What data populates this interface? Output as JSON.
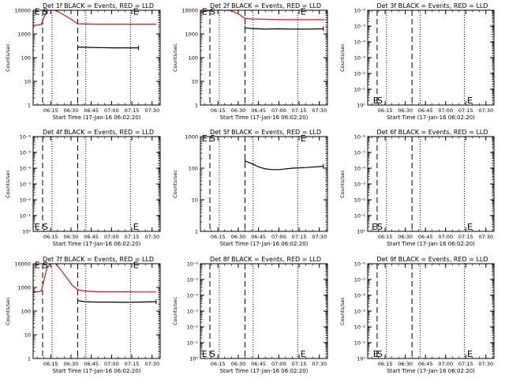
{
  "colors": {
    "events": "#000000",
    "lld": "#dd1111",
    "axis": "#000000",
    "background": "#ffffff"
  },
  "common": {
    "xlabel": "Start Time (17-Jan-16 06:02:20)",
    "ylabel": "Counts/sec",
    "xticks": [
      "06:15",
      "06:30",
      "06:45",
      "07:00",
      "07:15",
      "07:30"
    ]
  },
  "panels": [
    {
      "title": "Det 1f BLACK = Events, RED = LLD",
      "yticks": [
        "1",
        "10",
        "100",
        "1000",
        "10000"
      ]
    },
    {
      "title": "Det 2f BLACK = Events, RED = LLD",
      "yticks": [
        "1",
        "10",
        "100",
        "1000",
        "10000"
      ]
    },
    {
      "title": "Det 3f BLACK = Events, RED = LLD",
      "yticks": [
        "10⁰",
        "10⁻¹",
        "10⁻²",
        "10⁻³",
        "10⁻⁴",
        "10⁻⁵",
        "10⁻⁶"
      ]
    },
    {
      "title": "Det 4f BLACK = Events, RED = LLD",
      "yticks": [
        "10⁰",
        "10⁻¹",
        "10⁻²",
        "10⁻³",
        "10⁻⁴",
        "10⁻⁵",
        "10⁻⁶"
      ]
    },
    {
      "title": "Det 5f BLACK = Events, RED = LLD",
      "yticks": [
        "1",
        "10",
        "100",
        "1000"
      ]
    },
    {
      "title": "Det 6f BLACK = Events, RED = LLD",
      "yticks": [
        "10⁰",
        "10⁻¹",
        "10⁻²",
        "10⁻³",
        "10⁻⁴",
        "10⁻⁵",
        "10⁻⁶"
      ]
    },
    {
      "title": "Det 7f BLACK = Events, RED = LLD",
      "yticks": [
        "1",
        "10",
        "100",
        "1000",
        "10000"
      ]
    },
    {
      "title": "Det 8f BLACK = Events, RED = LLD",
      "yticks": [
        "10⁰",
        "10⁻¹",
        "10⁻²",
        "10⁻³",
        "10⁻⁴",
        "10⁻⁵",
        "10⁻⁶"
      ]
    },
    {
      "title": "Det 9f BLACK = Events, RED = LLD",
      "yticks": [
        "10⁰",
        "10⁻¹",
        "10⁻²",
        "10⁻³",
        "10⁻⁴",
        "10⁻⁵",
        "10⁻⁶"
      ]
    }
  ],
  "chart_data": [
    {
      "type": "line",
      "title": "Det 1f BLACK = Events, RED = LLD",
      "xlabel": "Start Time (17-Jan-16 06:02:20)",
      "ylabel": "Counts/sec",
      "yscale": "log",
      "xlim": [
        "06:02",
        "07:36"
      ],
      "ylim": [
        1,
        10000
      ],
      "dashed_x": [
        "06:09",
        "06:35"
      ],
      "dotted_x": [
        "06:16",
        "06:41",
        "07:14",
        "07:35"
      ],
      "markers": [
        {
          "label": "E",
          "x": "06:03",
          "y": 9000
        },
        {
          "label": "S",
          "x": "06:09",
          "y": 9000
        },
        {
          "label": "E",
          "x": "07:16",
          "y": 9000
        }
      ],
      "series": [
        {
          "color": "red",
          "x": [
            "06:02",
            "06:06",
            "06:08",
            "06:10",
            "06:12",
            "06:14",
            "06:16",
            "06:20",
            "06:28",
            "06:35",
            "06:50",
            "07:10",
            "07:33"
          ],
          "y": [
            2300,
            2400,
            2500,
            5000,
            9000,
            11000,
            11000,
            9000,
            5000,
            2700,
            2600,
            2600,
            2600
          ]
        },
        {
          "color": "black",
          "x": [
            "06:35",
            "06:45",
            "07:00",
            "07:15",
            "07:20"
          ],
          "y": [
            280,
            270,
            260,
            260,
            260
          ]
        }
      ]
    },
    {
      "type": "line",
      "title": "Det 2f BLACK = Events, RED = LLD",
      "xlabel": "Start Time (17-Jan-16 06:02:20)",
      "ylabel": "Counts/sec",
      "yscale": "log",
      "xlim": [
        "06:02",
        "07:36"
      ],
      "ylim": [
        1,
        10000
      ],
      "dashed_x": [
        "06:09",
        "06:35"
      ],
      "dotted_x": [
        "06:16",
        "06:41",
        "07:14",
        "07:35"
      ],
      "markers": [
        {
          "label": "E",
          "x": "06:03",
          "y": 9000
        },
        {
          "label": "S",
          "x": "06:09",
          "y": 9000
        },
        {
          "label": "E",
          "x": "07:16",
          "y": 9000
        }
      ],
      "series": [
        {
          "color": "red",
          "x": [
            "06:02",
            "06:05",
            "06:08",
            "06:11",
            "06:14",
            "06:18",
            "06:25",
            "06:31",
            "06:35",
            "06:40",
            "06:50",
            "07:00",
            "07:10",
            "07:20",
            "07:34"
          ],
          "y": [
            8500,
            9000,
            9500,
            11000,
            11000,
            10500,
            9500,
            6500,
            4500,
            4300,
            4200,
            4000,
            4000,
            4000,
            4000
          ]
        },
        {
          "color": "black",
          "x": [
            "06:35",
            "06:40",
            "06:50",
            "07:00",
            "07:10",
            "07:20",
            "07:33"
          ],
          "y": [
            1800,
            1700,
            1600,
            1650,
            1600,
            1600,
            1650
          ]
        }
      ]
    },
    {
      "type": "line",
      "title": "Det 3f BLACK = Events, RED = LLD",
      "xlabel": "Start Time (17-Jan-16 06:02:20)",
      "ylabel": "Counts/sec",
      "yscale": "log",
      "xlim": [
        "06:02",
        "07:36"
      ],
      "ylim": [
        1,
        1000000
      ],
      "dashed_x": [
        "06:09",
        "06:35"
      ],
      "dotted_x": [
        "06:16",
        "06:41",
        "07:14",
        "07:35"
      ],
      "markers": [
        {
          "label": "E",
          "x": "06:06",
          "y": 2
        },
        {
          "label": "S",
          "x": "06:09",
          "y": 2
        },
        {
          "label": "E",
          "x": "07:16",
          "y": 2
        }
      ],
      "series": []
    },
    {
      "type": "line",
      "title": "Det 4f BLACK = Events, RED = LLD",
      "xlabel": "Start Time (17-Jan-16 06:02:20)",
      "ylabel": "Counts/sec",
      "yscale": "log",
      "xlim": [
        "06:02",
        "07:36"
      ],
      "ylim": [
        1,
        1000000
      ],
      "dashed_x": [
        "06:09",
        "06:35"
      ],
      "dotted_x": [
        "06:16",
        "06:41",
        "07:14",
        "07:35"
      ],
      "markers": [
        {
          "label": "E",
          "x": "06:03",
          "y": 2
        },
        {
          "label": "S",
          "x": "06:09",
          "y": 2
        },
        {
          "label": "E",
          "x": "07:16",
          "y": 2
        }
      ],
      "series": []
    },
    {
      "type": "line",
      "title": "Det 5f BLACK = Events, RED = LLD",
      "xlabel": "Start Time (17-Jan-16 06:02:20)",
      "ylabel": "Counts/sec",
      "yscale": "log",
      "xlim": [
        "06:02",
        "07:36"
      ],
      "ylim": [
        1,
        1000
      ],
      "dashed_x": [
        "06:09",
        "06:35"
      ],
      "dotted_x": [
        "06:16",
        "06:41",
        "07:14",
        "07:35"
      ],
      "markers": [
        {
          "label": "E",
          "x": "06:03",
          "y": 900
        },
        {
          "label": "S",
          "x": "06:09",
          "y": 900
        },
        {
          "label": "E",
          "x": "07:16",
          "y": 900
        }
      ],
      "series": [
        {
          "color": "black",
          "x": [
            "06:35",
            "06:40",
            "06:45",
            "06:50",
            "06:55",
            "07:00",
            "07:10",
            "07:20",
            "07:33"
          ],
          "y": [
            170,
            140,
            110,
            95,
            90,
            90,
            100,
            105,
            115
          ]
        }
      ]
    },
    {
      "type": "line",
      "title": "Det 6f BLACK = Events, RED = LLD",
      "xlabel": "Start Time (17-Jan-16 06:02:20)",
      "ylabel": "Counts/sec",
      "yscale": "log",
      "xlim": [
        "06:02",
        "07:36"
      ],
      "ylim": [
        1,
        1000000
      ],
      "dashed_x": [
        "06:09",
        "06:35"
      ],
      "dotted_x": [
        "06:16",
        "06:41",
        "07:14",
        "07:35"
      ],
      "markers": [
        {
          "label": "E",
          "x": "06:05",
          "y": 2
        },
        {
          "label": "S",
          "x": "06:09",
          "y": 2
        },
        {
          "label": "E",
          "x": "07:16",
          "y": 2
        }
      ],
      "series": []
    },
    {
      "type": "line",
      "title": "Det 7f BLACK = Events, RED = LLD",
      "xlabel": "Start Time (17-Jan-16 06:02:20)",
      "ylabel": "Counts/sec",
      "yscale": "log",
      "xlim": [
        "06:02",
        "07:36"
      ],
      "ylim": [
        1,
        10000
      ],
      "dashed_x": [
        "06:09",
        "06:35"
      ],
      "dotted_x": [
        "06:16",
        "06:41",
        "07:14",
        "07:35"
      ],
      "markers": [
        {
          "label": "E",
          "x": "06:03",
          "y": 9000
        },
        {
          "label": "S",
          "x": "06:09",
          "y": 9000
        },
        {
          "label": "E",
          "x": "07:16",
          "y": 9000
        }
      ],
      "series": [
        {
          "color": "red",
          "x": [
            "06:02",
            "06:05",
            "06:08",
            "06:10",
            "06:12",
            "06:15",
            "06:18",
            "06:22",
            "06:27",
            "06:31",
            "06:35",
            "06:40",
            "06:50",
            "07:00",
            "07:10",
            "07:20",
            "07:33"
          ],
          "y": [
            650,
            650,
            700,
            2000,
            6000,
            11000,
            11000,
            6000,
            2500,
            1200,
            800,
            700,
            650,
            650,
            650,
            640,
            640
          ]
        },
        {
          "color": "black",
          "x": [
            "06:35",
            "06:40",
            "06:50",
            "07:00",
            "07:10",
            "07:20",
            "07:33"
          ],
          "y": [
            280,
            250,
            240,
            240,
            235,
            240,
            250
          ]
        }
      ]
    },
    {
      "type": "line",
      "title": "Det 8f BLACK = Events, RED = LLD",
      "xlabel": "Start Time (17-Jan-16 06:02:20)",
      "ylabel": "Counts/sec",
      "yscale": "log",
      "xlim": [
        "06:02",
        "07:36"
      ],
      "ylim": [
        1,
        1000000
      ],
      "dashed_x": [
        "06:09",
        "06:35"
      ],
      "dotted_x": [
        "06:16",
        "06:41",
        "07:14",
        "07:35"
      ],
      "markers": [
        {
          "label": "E",
          "x": "06:03",
          "y": 2
        },
        {
          "label": "S",
          "x": "06:09",
          "y": 2
        },
        {
          "label": "E",
          "x": "07:16",
          "y": 2
        }
      ],
      "series": []
    },
    {
      "type": "line",
      "title": "Det 9f BLACK = Events, RED = LLD",
      "xlabel": "Start Time (17-Jan-16 06:02:20)",
      "ylabel": "Counts/sec",
      "yscale": "log",
      "xlim": [
        "06:02",
        "07:36"
      ],
      "ylim": [
        1,
        1000000
      ],
      "dashed_x": [
        "06:09",
        "06:35"
      ],
      "dotted_x": [
        "06:16",
        "06:41",
        "07:14",
        "07:35"
      ],
      "markers": [
        {
          "label": "E",
          "x": "06:06",
          "y": 2
        },
        {
          "label": "S",
          "x": "06:09",
          "y": 2
        },
        {
          "label": "E",
          "x": "07:16",
          "y": 2
        }
      ],
      "series": []
    }
  ]
}
